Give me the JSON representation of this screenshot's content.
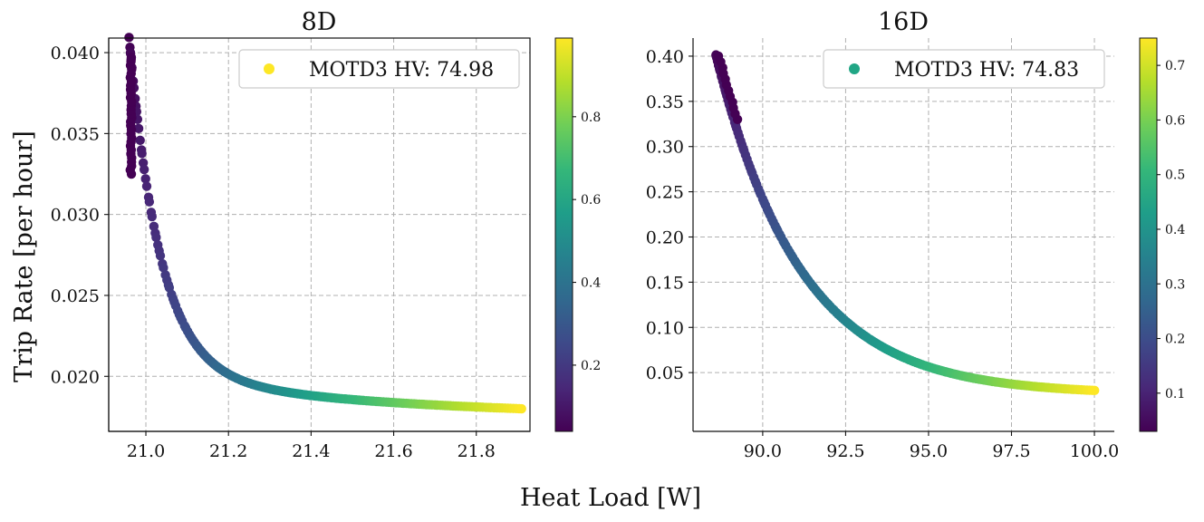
{
  "figure": {
    "xlabel": "Heat Load [W]",
    "ylabel": "Trip Rate [per hour]"
  },
  "colormap": {
    "name": "viridis",
    "stops": [
      "#440154",
      "#482878",
      "#3e4989",
      "#31688e",
      "#26828e",
      "#1f9e89",
      "#35b779",
      "#6ece58",
      "#b5de2b",
      "#fde725"
    ]
  },
  "chart_data": [
    {
      "type": "scatter",
      "title": "8D",
      "xlabel": "Heat Load [W]",
      "ylabel": "Trip Rate [per hour]",
      "xlim": [
        20.91,
        21.93
      ],
      "ylim": [
        0.0166,
        0.0409
      ],
      "xticks": [
        21.0,
        21.2,
        21.4,
        21.6,
        21.8
      ],
      "xtick_labels": [
        "21.0",
        "21.2",
        "21.4",
        "21.6",
        "21.8"
      ],
      "yticks": [
        0.02,
        0.025,
        0.03,
        0.035,
        0.04
      ],
      "ytick_labels": [
        "0.020",
        "0.025",
        "0.030",
        "0.035",
        "0.040"
      ],
      "grid": true,
      "legend": {
        "label": "MOTD3 HV: 74.98",
        "marker_color": "#fde725",
        "placement": "top-right"
      },
      "colorbar": {
        "range": [
          0.04,
          0.99
        ],
        "ticks": [
          0.2,
          0.4,
          0.6,
          0.8
        ],
        "tick_labels": [
          "0.2",
          "0.4",
          "0.6",
          "0.8"
        ]
      },
      "front": {
        "x_min": 20.96,
        "x_max": 21.91,
        "a": 0.001,
        "b": 0.0175,
        "point_count": 190
      }
    },
    {
      "type": "scatter",
      "title": "16D",
      "xlabel": "Heat Load [W]",
      "ylabel": "Trip Rate [per hour]",
      "xlim": [
        87.9,
        100.6
      ],
      "ylim": [
        -0.015,
        0.42
      ],
      "xticks": [
        90.0,
        92.5,
        95.0,
        97.5,
        100.0
      ],
      "xtick_labels": [
        "90.0",
        "92.5",
        "95.0",
        "97.5",
        "100.0"
      ],
      "yticks": [
        0.05,
        0.1,
        0.15,
        0.2,
        0.25,
        0.3,
        0.35,
        0.4
      ],
      "ytick_labels": [
        "0.05",
        "0.10",
        "0.15",
        "0.20",
        "0.25",
        "0.30",
        "0.35",
        "0.40"
      ],
      "grid": true,
      "legend": {
        "label": "MOTD3 HV: 74.83",
        "marker_color": "#21a685",
        "placement": "top-right"
      },
      "colorbar": {
        "range": [
          0.03,
          0.75
        ],
        "ticks": [
          0.1,
          0.2,
          0.3,
          0.4,
          0.5,
          0.6,
          0.7
        ],
        "tick_labels": [
          "0.1",
          "0.2",
          "0.3",
          "0.4",
          "0.5",
          "0.6",
          "0.7"
        ]
      },
      "front": {
        "x_min": 88.6,
        "x_max": 100.0,
        "a": 0.415,
        "b": 0.0,
        "point_count": 200
      }
    }
  ]
}
